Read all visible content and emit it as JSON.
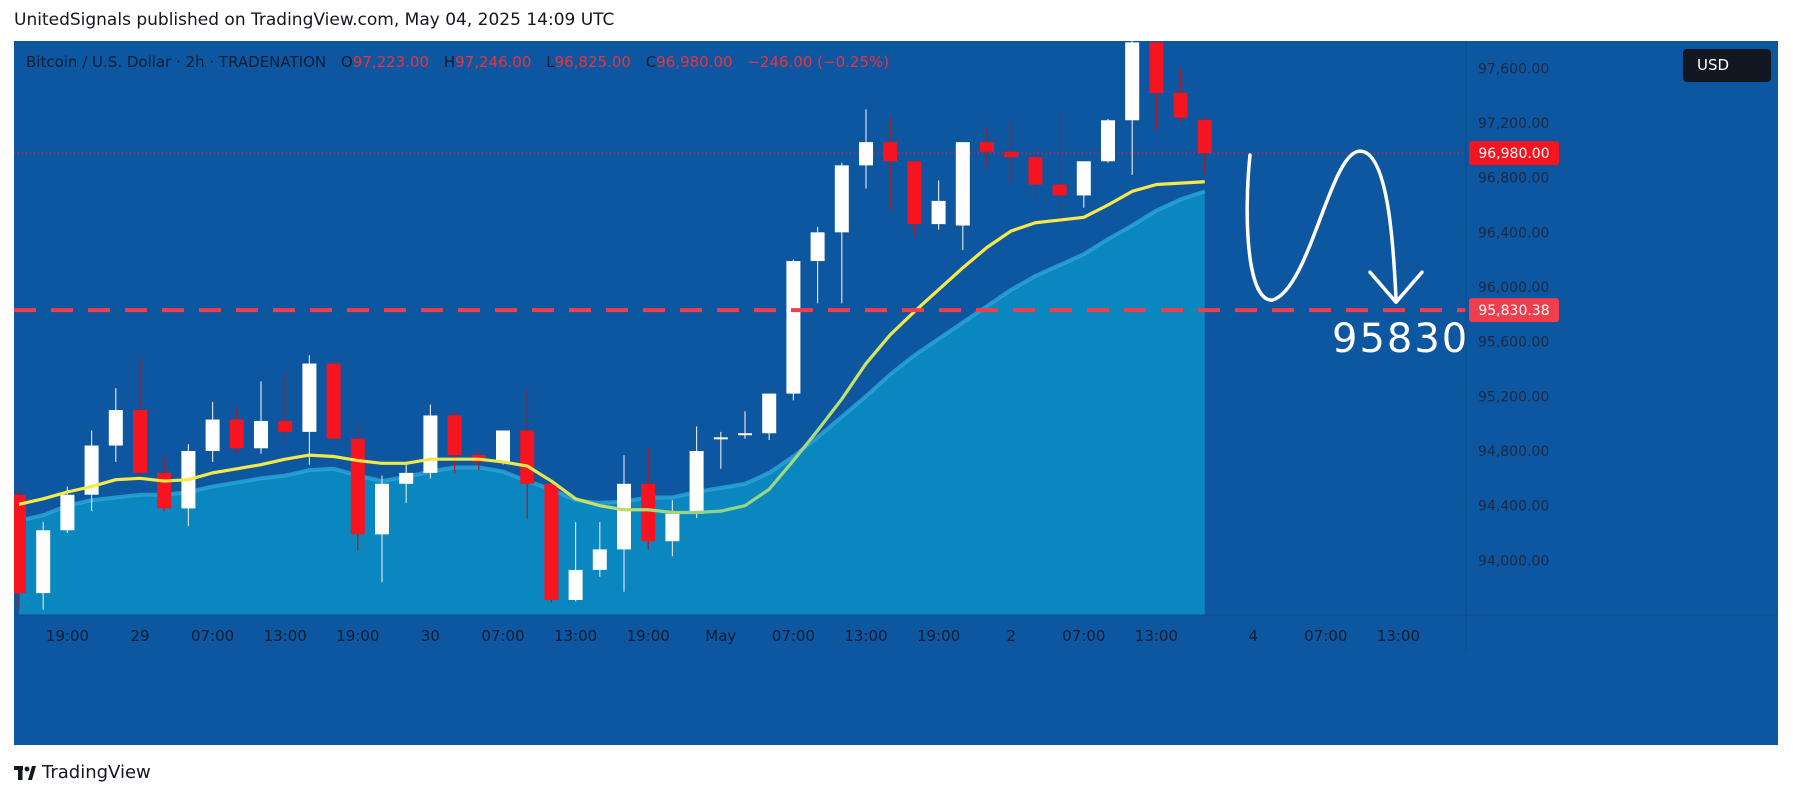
{
  "header": {
    "publisher": "UnitedSignals published on TradingView.com, May 04, 2025 14:09 UTC"
  },
  "legend": {
    "symbol": "Bitcoin / U.S. Dollar · 2h · TRADENATION",
    "open_label": "O",
    "open": "97,223.00",
    "high_label": "H",
    "high": "97,246.00",
    "low_label": "L",
    "low": "96,825.00",
    "close_label": "C",
    "close": "96,980.00",
    "change": "−246.00 (−0.25%)"
  },
  "currency": "USD",
  "price_tags": {
    "last": "96,980.00",
    "target": "95,830.38"
  },
  "annotation": {
    "target_text": "95830"
  },
  "footer": {
    "brand": "TradingView"
  },
  "colors": {
    "background": "#0d56a0",
    "bull_candle": "#ffffff",
    "bear_candle": "#f5141f",
    "ema": "#f7e948",
    "area_fill": "#0a8bc0",
    "target_line": "#ef3f4d"
  },
  "chart_data": {
    "type": "candlestick",
    "interval": "2h",
    "y_axis": {
      "ticks": [
        94000,
        94400,
        94800,
        95200,
        95600,
        96000,
        96400,
        96800,
        97200,
        97600
      ],
      "tick_labels": [
        "94,000.00",
        "94,400.00",
        "94,800.00",
        "95,200.00",
        "95,600.00",
        "96,000.00",
        "96,400.00",
        "96,800.00",
        "97,200.00",
        "97,600.00"
      ],
      "range": [
        93600,
        97800
      ]
    },
    "x_axis": {
      "tick_labels": [
        "19:00",
        "29",
        "07:00",
        "13:00",
        "19:00",
        "30",
        "07:00",
        "13:00",
        "19:00",
        "May",
        "07:00",
        "13:00",
        "19:00",
        "2",
        "07:00",
        "13:00",
        "4",
        "07:00",
        "13:00"
      ],
      "tick_bar_index": [
        2,
        5,
        8,
        11,
        14,
        17,
        20,
        23,
        26,
        29,
        32,
        35,
        38,
        41,
        44,
        47,
        51,
        54,
        57
      ]
    },
    "candles": [
      {
        "o": 94480,
        "h": 94520,
        "l": 93640,
        "c": 93760
      },
      {
        "o": 93760,
        "h": 94280,
        "l": 93640,
        "c": 94220
      },
      {
        "o": 94220,
        "h": 94540,
        "l": 94200,
        "c": 94480
      },
      {
        "o": 94480,
        "h": 94950,
        "l": 94360,
        "c": 94840
      },
      {
        "o": 94840,
        "h": 95260,
        "l": 94720,
        "c": 95100
      },
      {
        "o": 95100,
        "h": 95480,
        "l": 94620,
        "c": 94640
      },
      {
        "o": 94640,
        "h": 94760,
        "l": 94360,
        "c": 94380
      },
      {
        "o": 94380,
        "h": 94850,
        "l": 94250,
        "c": 94800
      },
      {
        "o": 94800,
        "h": 95160,
        "l": 94720,
        "c": 95030
      },
      {
        "o": 95030,
        "h": 95120,
        "l": 94780,
        "c": 94820
      },
      {
        "o": 94820,
        "h": 95310,
        "l": 94780,
        "c": 95020
      },
      {
        "o": 95020,
        "h": 95380,
        "l": 94860,
        "c": 94940
      },
      {
        "o": 94940,
        "h": 95500,
        "l": 94700,
        "c": 95440
      },
      {
        "o": 95440,
        "h": 95480,
        "l": 94880,
        "c": 94890
      },
      {
        "o": 94890,
        "h": 95000,
        "l": 94070,
        "c": 94190
      },
      {
        "o": 94190,
        "h": 94620,
        "l": 93840,
        "c": 94560
      },
      {
        "o": 94560,
        "h": 94720,
        "l": 94420,
        "c": 94640
      },
      {
        "o": 94640,
        "h": 95140,
        "l": 94600,
        "c": 95060
      },
      {
        "o": 95060,
        "h": 95090,
        "l": 94640,
        "c": 94770
      },
      {
        "o": 94770,
        "h": 94800,
        "l": 94660,
        "c": 94720
      },
      {
        "o": 94720,
        "h": 94950,
        "l": 94700,
        "c": 94950
      },
      {
        "o": 94950,
        "h": 95260,
        "l": 94300,
        "c": 94560
      },
      {
        "o": 94560,
        "h": 94600,
        "l": 93690,
        "c": 93710
      },
      {
        "o": 93710,
        "h": 94280,
        "l": 93700,
        "c": 93930
      },
      {
        "o": 93930,
        "h": 94280,
        "l": 93880,
        "c": 94080
      },
      {
        "o": 94080,
        "h": 94770,
        "l": 93770,
        "c": 94560
      },
      {
        "o": 94560,
        "h": 94820,
        "l": 94080,
        "c": 94140
      },
      {
        "o": 94140,
        "h": 94440,
        "l": 94030,
        "c": 94340
      },
      {
        "o": 94340,
        "h": 94980,
        "l": 94310,
        "c": 94800
      },
      {
        "o": 94900,
        "h": 94940,
        "l": 94670,
        "c": 94900
      },
      {
        "o": 94930,
        "h": 95090,
        "l": 94890,
        "c": 94930
      },
      {
        "o": 94930,
        "h": 95220,
        "l": 94880,
        "c": 95220
      },
      {
        "o": 95220,
        "h": 96200,
        "l": 95170,
        "c": 96190
      },
      {
        "o": 96190,
        "h": 96440,
        "l": 95880,
        "c": 96400
      },
      {
        "o": 96400,
        "h": 96910,
        "l": 95880,
        "c": 96890
      },
      {
        "o": 96890,
        "h": 97300,
        "l": 96720,
        "c": 97060
      },
      {
        "o": 97060,
        "h": 97240,
        "l": 96560,
        "c": 96920
      },
      {
        "o": 96920,
        "h": 96920,
        "l": 96380,
        "c": 96460
      },
      {
        "o": 96460,
        "h": 96780,
        "l": 96420,
        "c": 96630
      },
      {
        "o": 96450,
        "h": 97060,
        "l": 96270,
        "c": 97060
      },
      {
        "o": 97060,
        "h": 97170,
        "l": 96880,
        "c": 96990
      },
      {
        "o": 96990,
        "h": 97210,
        "l": 96760,
        "c": 96950
      },
      {
        "o": 96950,
        "h": 97010,
        "l": 96640,
        "c": 96750
      },
      {
        "o": 96750,
        "h": 97260,
        "l": 96450,
        "c": 96670
      },
      {
        "o": 96670,
        "h": 96890,
        "l": 96580,
        "c": 96920
      },
      {
        "o": 96920,
        "h": 97230,
        "l": 96910,
        "c": 97220
      },
      {
        "o": 97220,
        "h": 97800,
        "l": 96820,
        "c": 97790
      },
      {
        "o": 97790,
        "h": 97840,
        "l": 97150,
        "c": 97420
      },
      {
        "o": 97420,
        "h": 97600,
        "l": 97210,
        "c": 97240
      },
      {
        "o": 97223,
        "h": 97246,
        "l": 96825,
        "c": 96980
      }
    ],
    "ema": [
      94410,
      94450,
      94500,
      94540,
      94590,
      94600,
      94580,
      94590,
      94640,
      94670,
      94700,
      94740,
      94770,
      94760,
      94730,
      94710,
      94710,
      94740,
      94740,
      94740,
      94720,
      94690,
      94580,
      94450,
      94400,
      94370,
      94370,
      94350,
      94350,
      94360,
      94400,
      94520,
      94730,
      94950,
      95180,
      95440,
      95650,
      95820,
      95980,
      96140,
      96290,
      96410,
      96470,
      96490,
      96510,
      96600,
      96700,
      96750,
      96760,
      96770
    ],
    "area": [
      94290,
      94330,
      94400,
      94440,
      94460,
      94480,
      94480,
      94500,
      94540,
      94570,
      94600,
      94620,
      94660,
      94670,
      94620,
      94580,
      94610,
      94650,
      94680,
      94680,
      94650,
      94580,
      94520,
      94440,
      94420,
      94430,
      94460,
      94460,
      94500,
      94530,
      94560,
      94640,
      94760,
      94900,
      95050,
      95200,
      95360,
      95500,
      95620,
      95740,
      95860,
      95980,
      96080,
      96160,
      96240,
      96350,
      96450,
      96560,
      96640,
      96700
    ],
    "last_price": 96980,
    "target_level": 95830.38,
    "target_label": "95830"
  }
}
